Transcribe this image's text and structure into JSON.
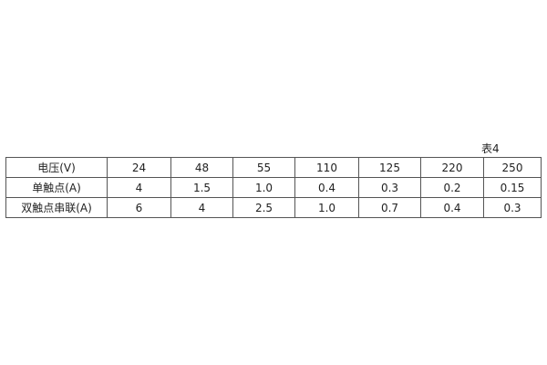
{
  "caption": "表4",
  "table": {
    "rows": [
      {
        "label": "电压(V)",
        "cells": [
          "24",
          "48",
          "55",
          "110",
          "125",
          "220",
          "250"
        ]
      },
      {
        "label": "单触点(A)",
        "cells": [
          "4",
          "1.5",
          "1.0",
          "0.4",
          "0.3",
          "0.2",
          "0.15"
        ]
      },
      {
        "label": "双触点串联(A)",
        "cells": [
          "6",
          "4",
          "2.5",
          "1.0",
          "0.7",
          "0.4",
          "0.3"
        ]
      }
    ]
  }
}
